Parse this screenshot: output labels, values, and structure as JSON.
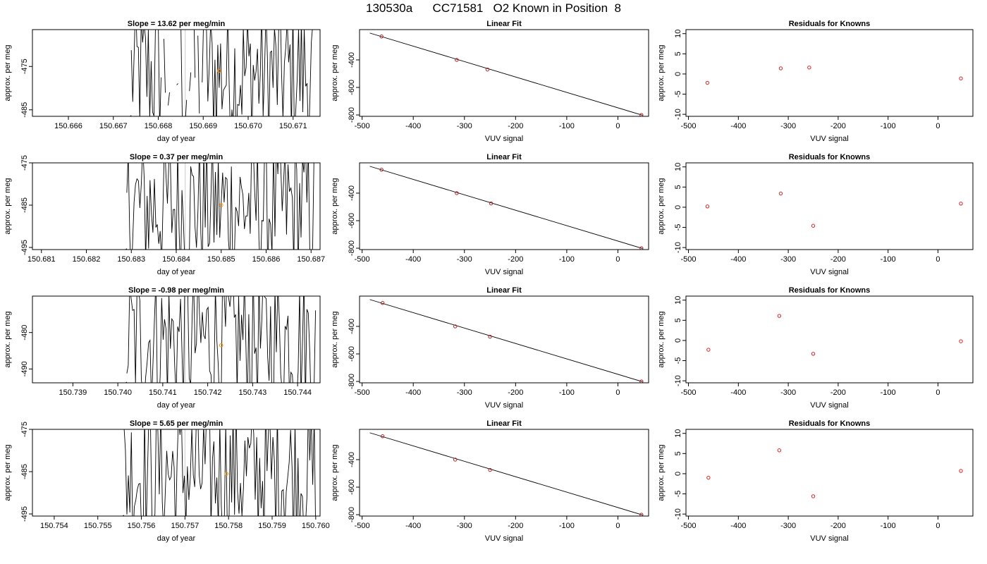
{
  "title": "130530a      CC71581   O2 Known in Position  8",
  "colors": {
    "line": "#000000",
    "point_fit": "#b22222",
    "point_resid": "#dd2222",
    "current_point": "#ff8c00",
    "grid": "#cccccc"
  },
  "chart_data": [
    {
      "row": 1,
      "panels": [
        {
          "type": "line",
          "title": "Slope =  13.62  per meg/min",
          "xlabel": "day of year",
          "ylabel": "approx. per meg",
          "x_ticks": [
            "150.666",
            "150.667",
            "150.668",
            "150.669",
            "150.670",
            "150.671"
          ],
          "y_ticks": [
            "-475",
            "-485"
          ],
          "xlim": [
            150.6652,
            150.6716
          ],
          "ylim": [
            -486.5,
            -466.5
          ],
          "trace_start": 150.6674,
          "trace_end": 150.6715,
          "trace_gap": [
            150.668,
            150.6691
          ],
          "gap_marker": 150.6686,
          "highlight_point": {
            "x": 150.66935,
            "y": -476
          }
        },
        {
          "type": "scatter",
          "title": "Linear Fit",
          "xlabel": "VUV signal",
          "ylabel": "approx. per meg",
          "x_ticks": [
            "-500",
            "-400",
            "-300",
            "-200",
            "-100",
            "0"
          ],
          "y_ticks": [
            "-400",
            "-600",
            "-800"
          ],
          "xlim": [
            -505,
            60
          ],
          "ylim": [
            -810,
            -180
          ],
          "points": [
            [
              -462,
              -230
            ],
            [
              -315,
              -400
            ],
            [
              -255,
              -470
            ],
            [
              46,
              -800
            ]
          ],
          "fit_line": [
            [
              -485,
              -205
            ],
            [
              48,
              -802
            ]
          ]
        },
        {
          "type": "scatter",
          "title": "Residuals for Knowns",
          "xlabel": "VUV signal",
          "ylabel": "approx. per meg",
          "x_ticks": [
            "-500",
            "-400",
            "-300",
            "-200",
            "-100",
            "0"
          ],
          "y_ticks": [
            "-10",
            "-5",
            "0",
            "5",
            "10"
          ],
          "xlim": [
            -505,
            70
          ],
          "ylim": [
            -10.5,
            11
          ],
          "points": [
            [
              -462,
              -2.2
            ],
            [
              -315,
              1.4
            ],
            [
              -258,
              1.6
            ],
            [
              46,
              -1.1
            ]
          ]
        }
      ]
    },
    {
      "row": 2,
      "panels": [
        {
          "type": "line",
          "title": "Slope =  0.37  per meg/min",
          "xlabel": "day of year",
          "ylabel": "approx. per meg",
          "x_ticks": [
            "150.681",
            "150.682",
            "150.683",
            "150.684",
            "150.685",
            "150.686",
            "150.687"
          ],
          "y_ticks": [
            "-475",
            "-485",
            "-495"
          ],
          "xlim": [
            150.6808,
            150.6872
          ],
          "ylim": [
            -495.5,
            -475
          ],
          "trace_start": 150.6829,
          "trace_end": 150.6871,
          "trace_gap": null,
          "gap_marker": 150.6842,
          "highlight_point": {
            "x": 150.685,
            "y": -485
          }
        },
        {
          "type": "scatter",
          "title": "Linear Fit",
          "xlabel": "VUV signal",
          "ylabel": "approx. per meg",
          "x_ticks": [
            "-500",
            "-400",
            "-300",
            "-200",
            "-100",
            "0"
          ],
          "y_ticks": [
            "-400",
            "-600",
            "-800"
          ],
          "xlim": [
            -505,
            60
          ],
          "ylim": [
            -810,
            -180
          ],
          "points": [
            [
              -462,
              -230
            ],
            [
              -315,
              -400
            ],
            [
              -248,
              -475
            ],
            [
              46,
              -800
            ]
          ],
          "fit_line": [
            [
              -485,
              -205
            ],
            [
              48,
              -802
            ]
          ]
        },
        {
          "type": "scatter",
          "title": "Residuals for Knowns",
          "xlabel": "VUV signal",
          "ylabel": "approx. per meg",
          "x_ticks": [
            "-500",
            "-400",
            "-300",
            "-200",
            "-100",
            "0"
          ],
          "y_ticks": [
            "-10",
            "-5",
            "0",
            "5",
            "10"
          ],
          "xlim": [
            -505,
            70
          ],
          "ylim": [
            -10.5,
            11
          ],
          "points": [
            [
              -462,
              0.2
            ],
            [
              -315,
              3.4
            ],
            [
              -250,
              -4.6
            ],
            [
              46,
              0.9
            ]
          ]
        }
      ]
    },
    {
      "row": 3,
      "panels": [
        {
          "type": "line",
          "title": "Slope =  -0.98  per meg/min",
          "xlabel": "day of year",
          "ylabel": "approx. per meg",
          "x_ticks": [
            "150.739",
            "150.740",
            "150.741",
            "150.742",
            "150.743",
            "150.744"
          ],
          "y_ticks": [
            "-480",
            "-490"
          ],
          "xlim": [
            150.7381,
            150.7445
          ],
          "ylim": [
            -493.8,
            -470
          ],
          "trace_start": 150.7402,
          "trace_end": 150.7444,
          "trace_gap": null,
          "gap_marker": 150.7415,
          "highlight_point": {
            "x": 150.7423,
            "y": -483.5
          }
        },
        {
          "type": "scatter",
          "title": "Linear Fit",
          "xlabel": "VUV signal",
          "ylabel": "approx. per meg",
          "x_ticks": [
            "-500",
            "-400",
            "-300",
            "-200",
            "-100",
            "0"
          ],
          "y_ticks": [
            "-400",
            "-600",
            "-800"
          ],
          "xlim": [
            -505,
            60
          ],
          "ylim": [
            -810,
            -180
          ],
          "points": [
            [
              -460,
              -230
            ],
            [
              -318,
              -400
            ],
            [
              -250,
              -475
            ],
            [
              46,
              -800
            ]
          ],
          "fit_line": [
            [
              -485,
              -205
            ],
            [
              48,
              -802
            ]
          ]
        },
        {
          "type": "scatter",
          "title": "Residuals for Knowns",
          "xlabel": "VUV signal",
          "ylabel": "approx. per meg",
          "x_ticks": [
            "-500",
            "-400",
            "-300",
            "-200",
            "-100",
            "0"
          ],
          "y_ticks": [
            "-10",
            "-5",
            "0",
            "5",
            "10"
          ],
          "xlim": [
            -505,
            70
          ],
          "ylim": [
            -10.5,
            11
          ],
          "points": [
            [
              -460,
              -2.3
            ],
            [
              -318,
              6.1
            ],
            [
              -250,
              -3.3
            ],
            [
              46,
              -0.2
            ]
          ]
        }
      ]
    },
    {
      "row": 4,
      "panels": [
        {
          "type": "line",
          "title": "Slope =  5.65  per meg/min",
          "xlabel": "day of year",
          "ylabel": "approx. per meg",
          "x_ticks": [
            "150.754",
            "150.755",
            "150.756",
            "150.757",
            "150.758",
            "150.759",
            "150.760"
          ],
          "y_ticks": [
            "-475",
            "-485",
            "-495"
          ],
          "xlim": [
            150.7535,
            150.7601
          ],
          "ylim": [
            -495.5,
            -475
          ],
          "trace_start": 150.7556,
          "trace_end": 150.76,
          "trace_gap": null,
          "gap_marker": 150.757,
          "highlight_point": {
            "x": 150.75795,
            "y": -485.5
          }
        },
        {
          "type": "scatter",
          "title": "Linear Fit",
          "xlabel": "VUV signal",
          "ylabel": "approx. per meg",
          "x_ticks": [
            "-500",
            "-400",
            "-300",
            "-200",
            "-100",
            "0"
          ],
          "y_ticks": [
            "-400",
            "-600",
            "-800"
          ],
          "xlim": [
            -505,
            60
          ],
          "ylim": [
            -810,
            -180
          ],
          "points": [
            [
              -460,
              -230
            ],
            [
              -318,
              -400
            ],
            [
              -250,
              -475
            ],
            [
              46,
              -800
            ]
          ],
          "fit_line": [
            [
              -485,
              -205
            ],
            [
              48,
              -802
            ]
          ]
        },
        {
          "type": "scatter",
          "title": "Residuals for Knowns",
          "xlabel": "VUV signal",
          "ylabel": "approx. per meg",
          "x_ticks": [
            "-500",
            "-400",
            "-300",
            "-200",
            "-100",
            "0"
          ],
          "y_ticks": [
            "-10",
            "-5",
            "0",
            "5",
            "10"
          ],
          "xlim": [
            -505,
            70
          ],
          "ylim": [
            -10.5,
            11
          ],
          "points": [
            [
              -460,
              -1.0
            ],
            [
              -318,
              5.8
            ],
            [
              -250,
              -5.6
            ],
            [
              46,
              0.7
            ]
          ]
        }
      ]
    }
  ]
}
